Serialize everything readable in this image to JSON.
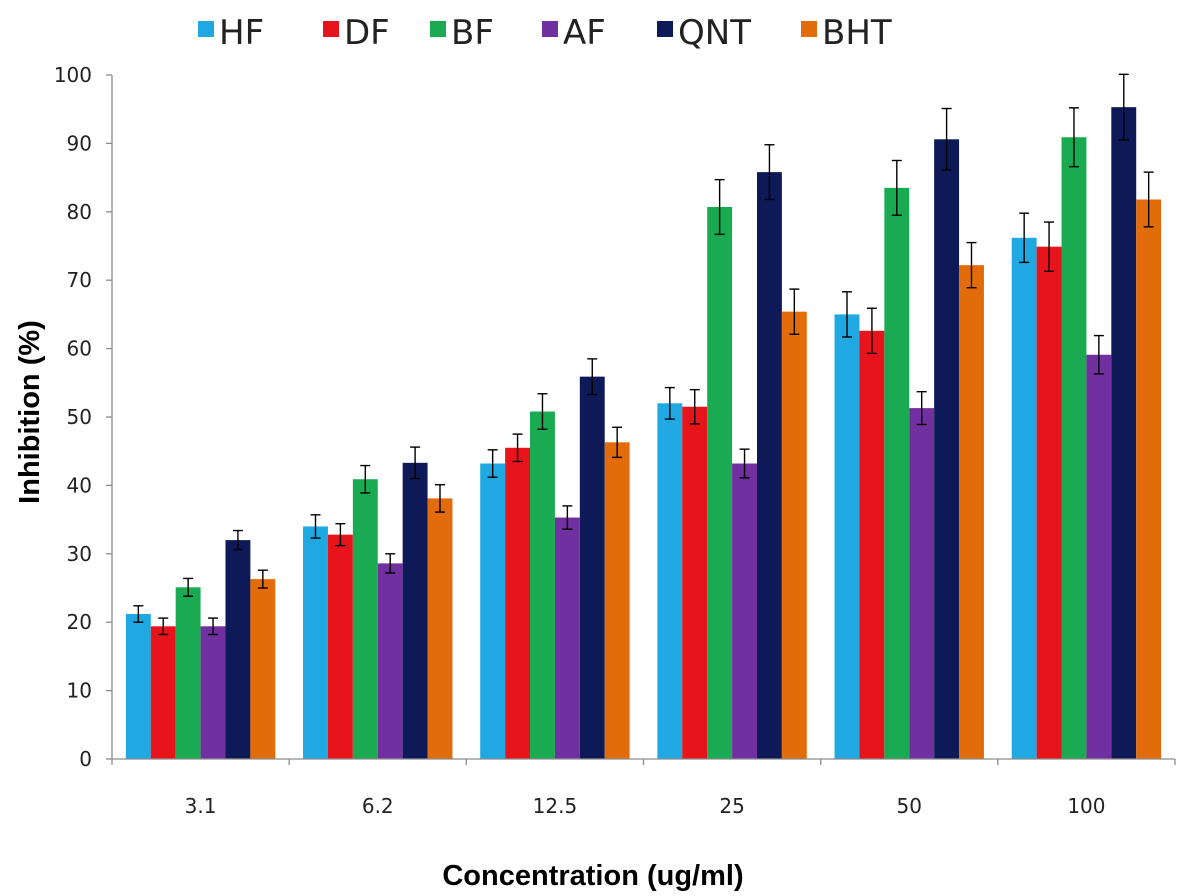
{
  "chart_data": {
    "type": "bar",
    "title": "",
    "xlabel": "Concentration (ug/ml)",
    "ylabel": "Inhibition (%)",
    "categories": [
      "3.1",
      "6.2",
      "12.5",
      "25",
      "50",
      "100"
    ],
    "ylim": [
      0,
      100
    ],
    "yticks": [
      "0",
      "10",
      "20",
      "30",
      "40",
      "50",
      "60",
      "70",
      "80",
      "90",
      "100"
    ],
    "grid": false,
    "legend_position": "top",
    "error_bars": true,
    "series": [
      {
        "name": "HF",
        "color": "#1FA8E1",
        "values": [
          21.2,
          34.0,
          43.2,
          52.0,
          65.0,
          76.2
        ],
        "errors": [
          1.2,
          1.7,
          2.0,
          2.3,
          3.3,
          3.6
        ]
      },
      {
        "name": "DF",
        "color": "#E8141B",
        "values": [
          19.4,
          32.8,
          45.5,
          51.5,
          62.6,
          74.9
        ],
        "errors": [
          1.2,
          1.6,
          2.0,
          2.5,
          3.3,
          3.6
        ]
      },
      {
        "name": "BF",
        "color": "#1AAA52",
        "values": [
          25.1,
          40.9,
          50.8,
          80.7,
          83.5,
          90.9
        ],
        "errors": [
          1.3,
          2.0,
          2.6,
          4.0,
          4.0,
          4.3
        ]
      },
      {
        "name": "AF",
        "color": "#7030A0",
        "values": [
          19.4,
          28.6,
          35.3,
          43.2,
          51.3,
          59.1
        ],
        "errors": [
          1.2,
          1.4,
          1.7,
          2.1,
          2.4,
          2.8
        ]
      },
      {
        "name": "QNT",
        "color": "#0E1A57",
        "values": [
          32.0,
          43.3,
          55.9,
          85.8,
          90.6,
          95.3
        ],
        "errors": [
          1.4,
          2.3,
          2.6,
          4.0,
          4.5,
          4.8
        ]
      },
      {
        "name": "BHT",
        "color": "#E36C0A",
        "values": [
          26.3,
          38.1,
          46.3,
          65.4,
          72.2,
          81.8
        ],
        "errors": [
          1.3,
          2.0,
          2.2,
          3.3,
          3.3,
          4.0
        ]
      }
    ]
  }
}
